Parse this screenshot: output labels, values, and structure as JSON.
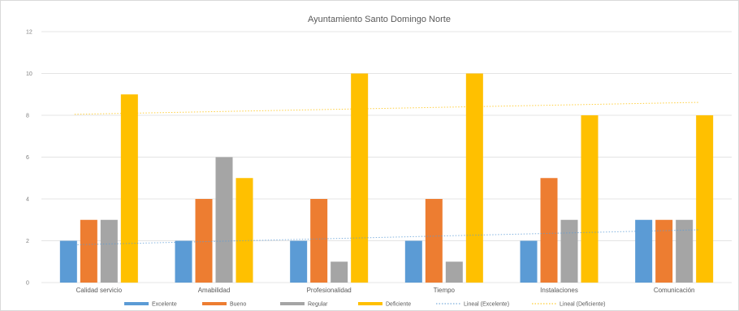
{
  "chart_data": {
    "type": "bar",
    "title": "Ayuntamiento Santo Domingo Norte",
    "xlabel": "",
    "ylabel": "",
    "categories": [
      "Calidad servicio",
      "Amabilidad",
      "Profesionalidad",
      "Tiempo",
      "Instalaciones",
      "Comunicación"
    ],
    "series": [
      {
        "name": "Excelente",
        "color": "#5b9bd5",
        "values": [
          2,
          2,
          2,
          2,
          2,
          3
        ]
      },
      {
        "name": "Bueno",
        "color": "#ed7d31",
        "values": [
          3,
          4,
          4,
          4,
          5,
          3
        ]
      },
      {
        "name": "Regular",
        "color": "#a5a5a5",
        "values": [
          3,
          6,
          1,
          1,
          3,
          3
        ]
      },
      {
        "name": "Deficiente",
        "color": "#ffc000",
        "values": [
          9,
          5,
          10,
          10,
          8,
          8
        ]
      }
    ],
    "trendlines": [
      {
        "name": "Lineal (Excelente)",
        "series": "Excelente",
        "color": "#5b9bd5",
        "style": "dotted"
      },
      {
        "name": "Lineal (Deficiente)",
        "series": "Deficiente",
        "color": "#ffc000",
        "style": "dotted"
      }
    ],
    "ylim": [
      0,
      12
    ],
    "yticks": [
      "0",
      "2",
      "4",
      "6",
      "8",
      "10",
      "12"
    ],
    "grid": true,
    "legend_position": "bottom"
  }
}
